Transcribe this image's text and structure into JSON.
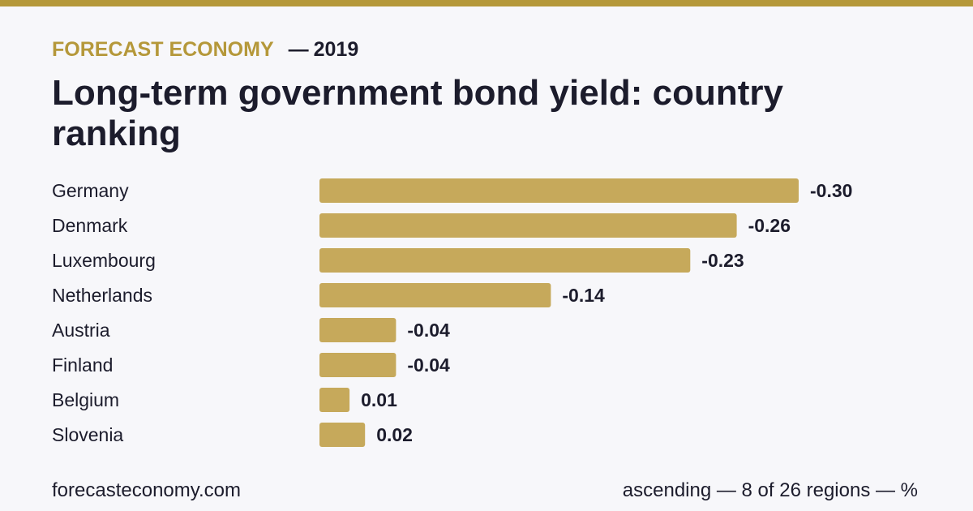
{
  "header": {
    "brand": "FORECAST ECONOMY",
    "dash": "—",
    "year": "2019",
    "title": "Long-term government bond yield: country ranking"
  },
  "colors": {
    "accent": "#b5983a",
    "bar": "#c6a95b",
    "text": "#1c1c2c",
    "background": "#f7f7fa"
  },
  "chart_data": {
    "type": "bar",
    "orientation": "horizontal",
    "categories": [
      "Germany",
      "Denmark",
      "Luxembourg",
      "Netherlands",
      "Austria",
      "Finland",
      "Belgium",
      "Slovenia"
    ],
    "values": [
      -0.3,
      -0.26,
      -0.23,
      -0.14,
      -0.04,
      -0.04,
      0.01,
      0.02
    ],
    "value_labels": [
      "-0.30",
      "-0.26",
      "-0.23",
      "-0.14",
      "-0.04",
      "-0.04",
      "0.01",
      "0.02"
    ],
    "title": "Long-term government bond yield: country ranking",
    "sort": "ascending",
    "unit": "%",
    "grid": false,
    "legend": "none"
  },
  "footer": {
    "source": "forecasteconomy.com",
    "note": "ascending — 8 of 26 regions — %"
  }
}
